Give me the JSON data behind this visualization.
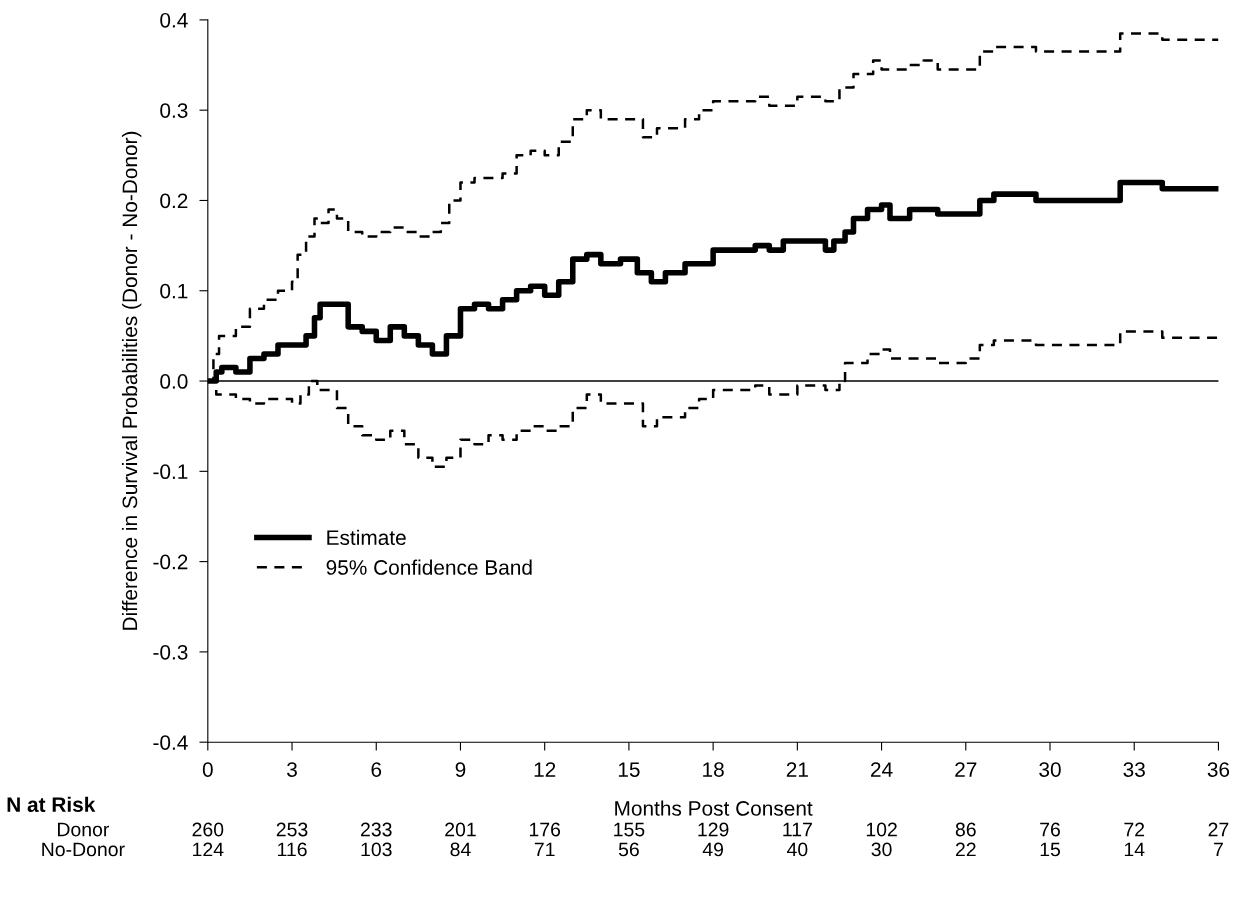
{
  "chart_data": {
    "type": "step",
    "xlabel": "Months Post Consent",
    "ylabel": "Difference in Survival Probabilities (Donor - No-Donor)",
    "xlim": [
      0,
      36
    ],
    "ylim": [
      -0.4,
      0.4
    ],
    "xticks": [
      0,
      3,
      6,
      9,
      12,
      15,
      18,
      21,
      24,
      27,
      30,
      33,
      36
    ],
    "yticks": [
      {
        "value": -0.4,
        "label": "-0.4"
      },
      {
        "value": -0.3,
        "label": "-0.3"
      },
      {
        "value": -0.2,
        "label": "-0.2"
      },
      {
        "value": -0.1,
        "label": "-0.1"
      },
      {
        "value": 0,
        "label": "0.0"
      },
      {
        "value": 0.1,
        "label": "0.1"
      },
      {
        "value": 0.2,
        "label": "0.2"
      },
      {
        "value": 0.3,
        "label": "0.3"
      },
      {
        "value": 0.4,
        "label": "0.4"
      }
    ],
    "grid": false,
    "legend": "bottom left",
    "marker": "none",
    "ref_lines": [
      {
        "axis": "y",
        "value": 0,
        "color": "#000000",
        "line_style": "solid"
      }
    ],
    "series": [
      {
        "name": "Estimate",
        "color": "#000000",
        "line_style": "solid",
        "x": [
          0,
          0.3,
          0.5,
          1,
          1.5,
          2,
          2.5,
          3.3,
          3.5,
          3.8,
          4,
          4.5,
          5,
          5.5,
          6,
          6.5,
          7,
          7.5,
          8,
          8.5,
          9,
          9.5,
          10,
          10.5,
          11,
          11.5,
          12,
          12.5,
          13,
          13.5,
          14,
          14.7,
          15.3,
          15.8,
          16.3,
          17,
          18,
          19.5,
          20,
          20.5,
          21.5,
          22,
          22.3,
          22.7,
          23,
          23.5,
          24,
          24.3,
          25,
          26,
          27.5,
          28,
          29.5,
          32.5,
          34,
          36
        ],
        "values": [
          0,
          0.01,
          0.015,
          0.01,
          0.025,
          0.03,
          0.04,
          0.04,
          0.05,
          0.07,
          0.085,
          0.085,
          0.06,
          0.055,
          0.045,
          0.06,
          0.05,
          0.04,
          0.03,
          0.05,
          0.08,
          0.085,
          0.08,
          0.09,
          0.1,
          0.105,
          0.095,
          0.11,
          0.135,
          0.14,
          0.13,
          0.135,
          0.12,
          0.11,
          0.12,
          0.13,
          0.145,
          0.15,
          0.145,
          0.155,
          0.155,
          0.145,
          0.155,
          0.165,
          0.18,
          0.19,
          0.195,
          0.18,
          0.19,
          0.185,
          0.2,
          0.207,
          0.2,
          0.22,
          0.213,
          0.213
        ]
      },
      {
        "name": "95% Confidence Band",
        "color": "#000000",
        "line_style": "dashed",
        "x": [
          0,
          0.2,
          0.4,
          1,
          1.5,
          2,
          2.5,
          3,
          3.2,
          3.5,
          3.8,
          4,
          4.3,
          4.6,
          5,
          5.5,
          6,
          6.5,
          7,
          7.5,
          8,
          8.3,
          8.6,
          9,
          9.5,
          10.5,
          11,
          11.5,
          12,
          12.5,
          13,
          13.5,
          14,
          15.5,
          16,
          17,
          17.5,
          18,
          19.5,
          20,
          21,
          22,
          22.5,
          23,
          23.7,
          24,
          25,
          25.5,
          26,
          27.5,
          28,
          29.5,
          32.5,
          34,
          36
        ],
        "values": [
          0,
          0.03,
          0.05,
          0.06,
          0.08,
          0.09,
          0.1,
          0.11,
          0.14,
          0.16,
          0.18,
          0.175,
          0.19,
          0.18,
          0.165,
          0.16,
          0.165,
          0.17,
          0.165,
          0.16,
          0.165,
          0.175,
          0.2,
          0.22,
          0.225,
          0.23,
          0.25,
          0.255,
          0.25,
          0.265,
          0.29,
          0.3,
          0.29,
          0.27,
          0.28,
          0.29,
          0.3,
          0.31,
          0.315,
          0.305,
          0.315,
          0.31,
          0.325,
          0.34,
          0.355,
          0.345,
          0.35,
          0.355,
          0.345,
          0.365,
          0.37,
          0.365,
          0.385,
          0.378,
          0.378
        ]
      },
      {
        "color": "#000000",
        "line_style": "dashed",
        "x": [
          0,
          0.3,
          1,
          1.5,
          2,
          3,
          3.3,
          3.6,
          3.9,
          4.6,
          5,
          5.5,
          6,
          6.5,
          7,
          7.5,
          8,
          8.5,
          9,
          9.5,
          10,
          10.5,
          11,
          11.5,
          12,
          12.5,
          13,
          13.5,
          14,
          15.5,
          16,
          17,
          17.5,
          18,
          19.5,
          20,
          21,
          22,
          22.5,
          22.7,
          23.5,
          24,
          24.3,
          26,
          27,
          27.5,
          28,
          29.5,
          32.5,
          34,
          36
        ],
        "values": [
          0,
          -0.015,
          -0.02,
          -0.025,
          -0.02,
          -0.025,
          -0.015,
          0,
          -0.01,
          -0.03,
          -0.05,
          -0.06,
          -0.065,
          -0.055,
          -0.07,
          -0.085,
          -0.095,
          -0.085,
          -0.065,
          -0.07,
          -0.06,
          -0.065,
          -0.055,
          -0.05,
          -0.055,
          -0.05,
          -0.03,
          -0.015,
          -0.025,
          -0.05,
          -0.04,
          -0.03,
          -0.02,
          -0.01,
          -0.005,
          -0.015,
          -0.005,
          -0.01,
          0,
          0.02,
          0.03,
          0.035,
          0.025,
          0.02,
          0.025,
          0.04,
          0.045,
          0.04,
          0.055,
          0.048,
          0.048
        ]
      }
    ],
    "annotations": [
      "N at Risk",
      "Donor",
      "260",
      "253",
      "233",
      "201",
      "176",
      "155",
      "129",
      "117",
      "102",
      "86",
      "76",
      "72",
      "27",
      "No-Donor",
      "124",
      "116",
      "103",
      "84",
      "71",
      "56",
      "49",
      "40",
      "30",
      "22",
      "15",
      "14",
      "7"
    ]
  }
}
